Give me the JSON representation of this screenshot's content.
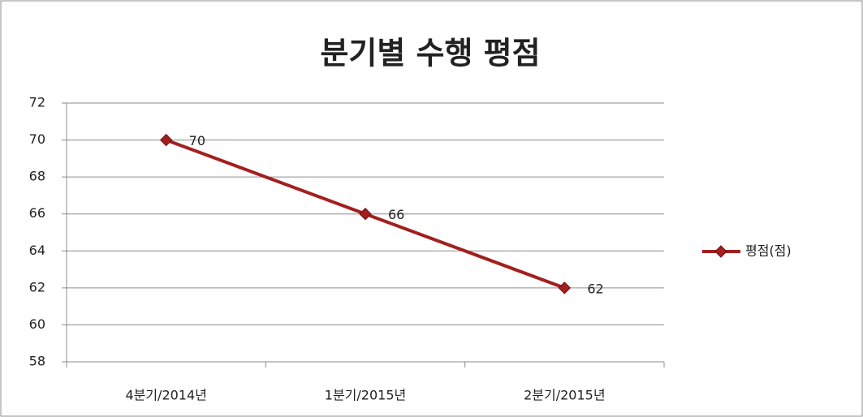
{
  "chart_data": {
    "type": "line",
    "title": "분기별 수행 평점",
    "categories": [
      "4분기/2014년",
      "1분기/2015년",
      "2분기/2015년"
    ],
    "series": [
      {
        "name": "평점(점)",
        "color": "#a31f1f",
        "values": [
          70,
          66,
          62
        ]
      }
    ],
    "ylim": [
      58,
      72
    ],
    "yticks": [
      58,
      60,
      62,
      64,
      66,
      68,
      70,
      72
    ],
    "grid": true,
    "legend": "right"
  }
}
